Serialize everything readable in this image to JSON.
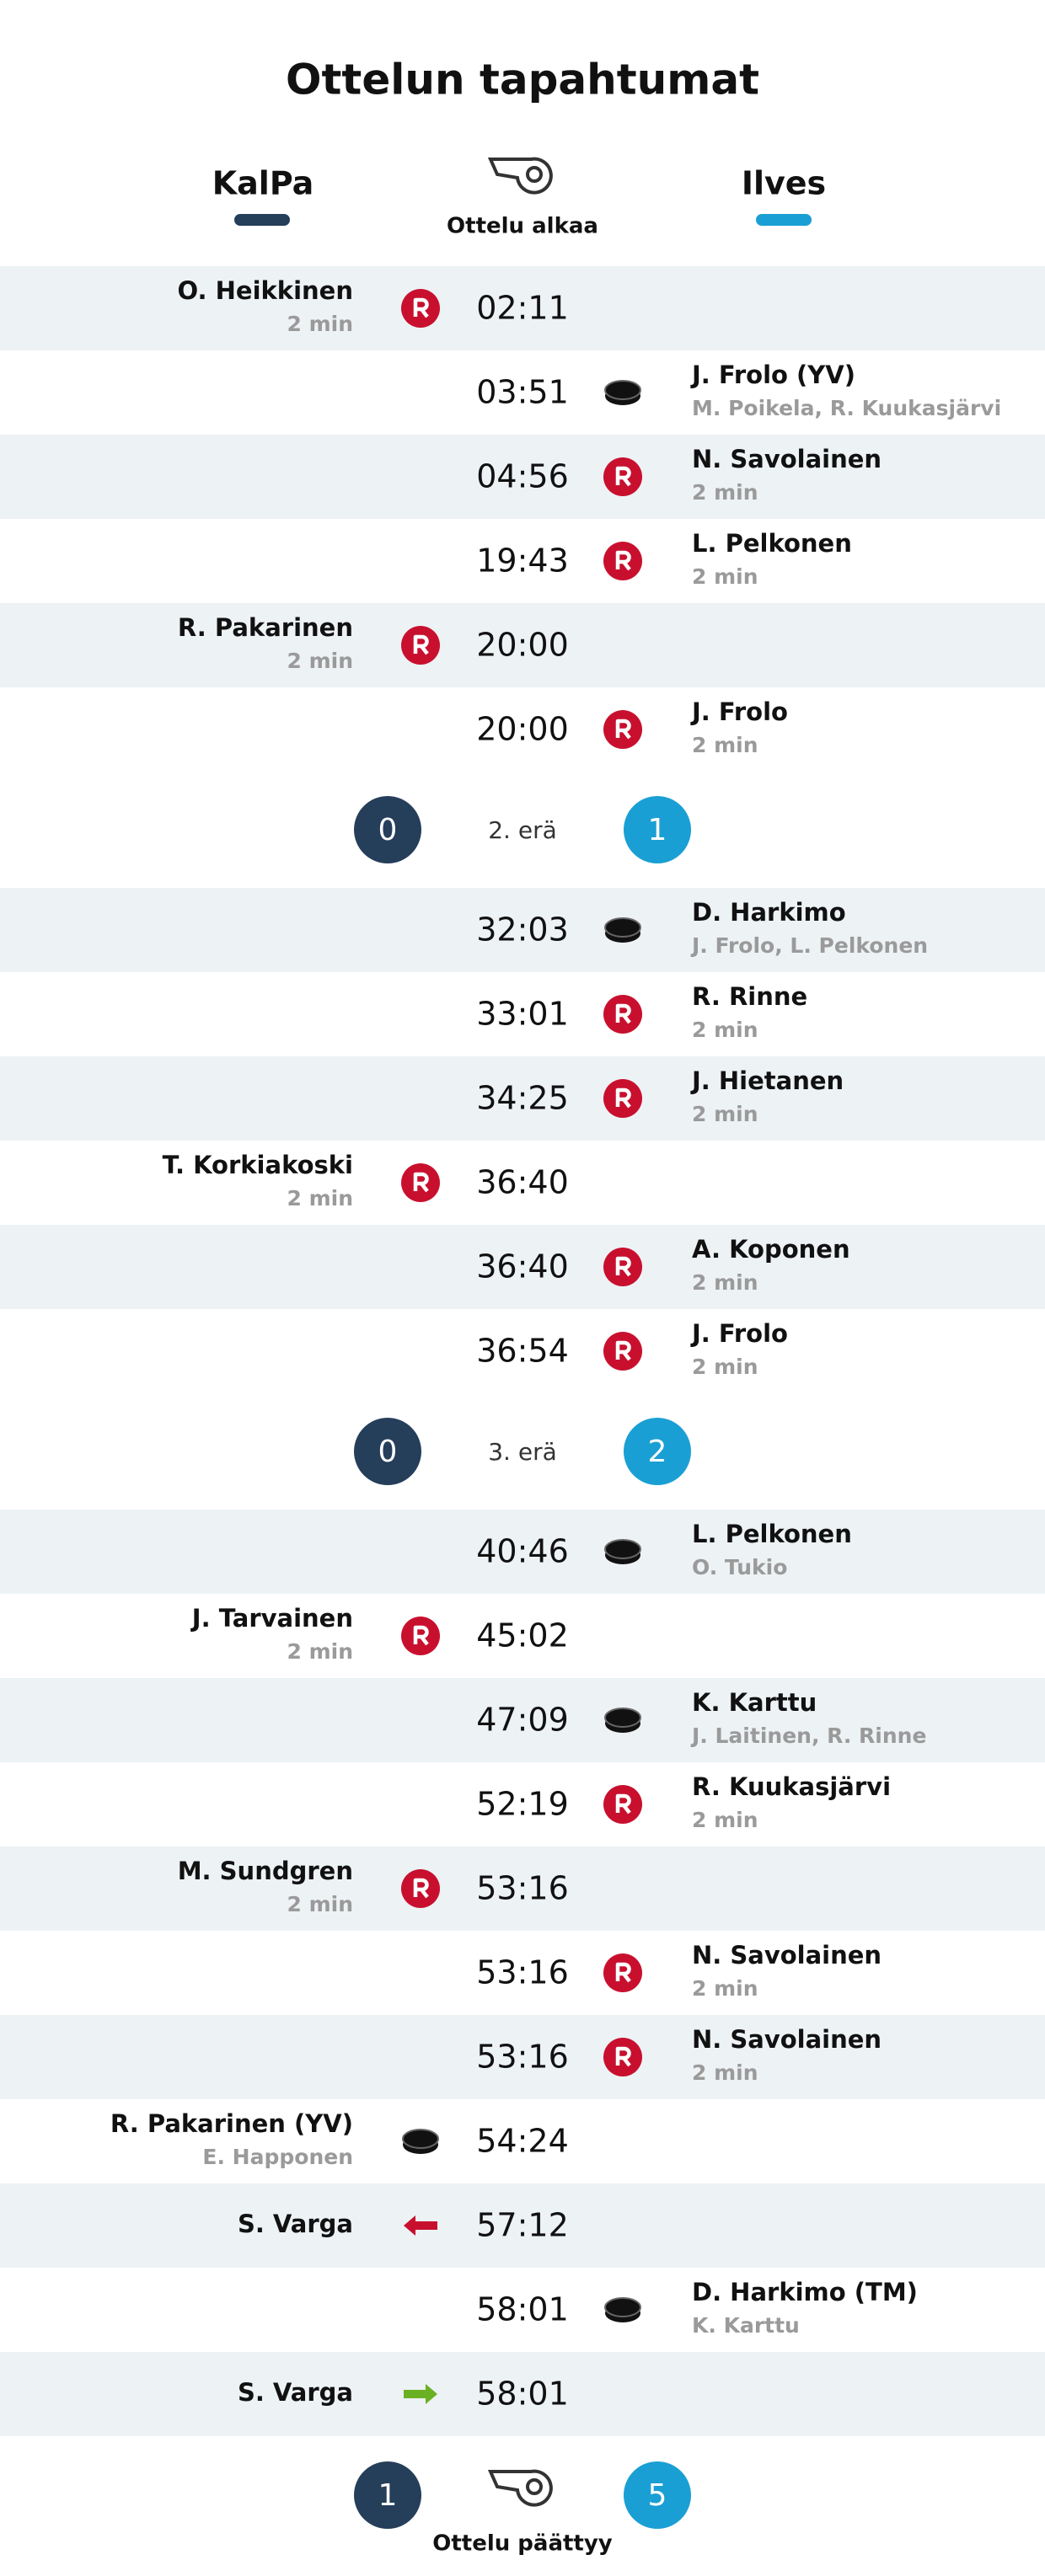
{
  "header": {
    "title": "Ottelun tapahtumat",
    "home": "KalPa",
    "away": "Ilves",
    "start": "Ottelu alkaa",
    "end": "Ottelu päättyy"
  },
  "periods": [
    {
      "events": [
        {
          "time": "02:11",
          "side": "home",
          "icon": "penalty",
          "name": "O. Heikkinen",
          "detail": "2 min"
        },
        {
          "time": "03:51",
          "side": "away",
          "icon": "goal",
          "name": "J. Frolo (YV)",
          "detail": "M. Poikela, R. Kuukasjärvi"
        },
        {
          "time": "04:56",
          "side": "away",
          "icon": "penalty",
          "name": "N. Savolainen",
          "detail": "2 min"
        },
        {
          "time": "19:43",
          "side": "away",
          "icon": "penalty",
          "name": "L. Pelkonen",
          "detail": "2 min"
        },
        {
          "time": "20:00",
          "side": "home",
          "icon": "penalty",
          "name": "R. Pakarinen",
          "detail": "2 min"
        },
        {
          "time": "20:00",
          "side": "away",
          "icon": "penalty",
          "name": "J. Frolo",
          "detail": "2 min"
        }
      ]
    },
    {
      "label": "2. erä",
      "score": [
        0,
        1
      ],
      "events": [
        {
          "time": "32:03",
          "side": "away",
          "icon": "goal",
          "name": "D. Harkimo",
          "detail": "J. Frolo, L. Pelkonen"
        },
        {
          "time": "33:01",
          "side": "away",
          "icon": "penalty",
          "name": "R. Rinne",
          "detail": "2 min"
        },
        {
          "time": "34:25",
          "side": "away",
          "icon": "penalty",
          "name": "J. Hietanen",
          "detail": "2 min"
        },
        {
          "time": "36:40",
          "side": "home",
          "icon": "penalty",
          "name": "T. Korkiakoski",
          "detail": "2 min"
        },
        {
          "time": "36:40",
          "side": "away",
          "icon": "penalty",
          "name": "A. Koponen",
          "detail": "2 min"
        },
        {
          "time": "36:54",
          "side": "away",
          "icon": "penalty",
          "name": "J. Frolo",
          "detail": "2 min"
        }
      ]
    },
    {
      "label": "3. erä",
      "score": [
        0,
        2
      ],
      "events": [
        {
          "time": "40:46",
          "side": "away",
          "icon": "goal",
          "name": "L. Pelkonen",
          "detail": "O. Tukio"
        },
        {
          "time": "45:02",
          "side": "home",
          "icon": "penalty",
          "name": "J. Tarvainen",
          "detail": "2 min"
        },
        {
          "time": "47:09",
          "side": "away",
          "icon": "goal",
          "name": "K. Karttu",
          "detail": "J. Laitinen, R. Rinne"
        },
        {
          "time": "52:19",
          "side": "away",
          "icon": "penalty",
          "name": "R. Kuukasjärvi",
          "detail": "2 min"
        },
        {
          "time": "53:16",
          "side": "home",
          "icon": "penalty",
          "name": "M. Sundgren",
          "detail": "2 min"
        },
        {
          "time": "53:16",
          "side": "away",
          "icon": "penalty",
          "name": "N. Savolainen",
          "detail": "2 min"
        },
        {
          "time": "53:16",
          "side": "away",
          "icon": "penalty",
          "name": "N. Savolainen",
          "detail": "2 min"
        },
        {
          "time": "54:24",
          "side": "home",
          "icon": "goal",
          "name": "R. Pakarinen (YV)",
          "detail": "E. Happonen"
        },
        {
          "time": "57:12",
          "side": "home",
          "icon": "out",
          "name": "S. Varga"
        },
        {
          "time": "58:01",
          "side": "away",
          "icon": "goal",
          "name": "D. Harkimo (TM)",
          "detail": "K. Karttu"
        },
        {
          "time": "58:01",
          "side": "home",
          "icon": "in",
          "name": "S. Varga"
        }
      ]
    }
  ],
  "final_score": [
    1,
    5
  ]
}
